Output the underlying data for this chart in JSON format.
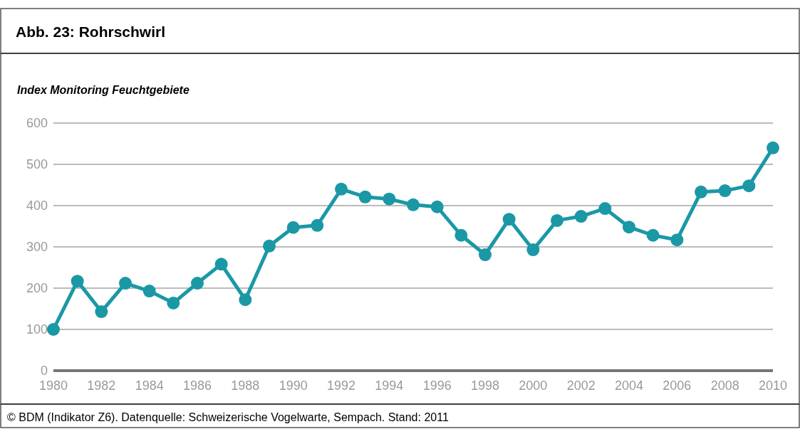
{
  "chart_data": {
    "type": "line",
    "title": "Abb. 23: Rohrschwirl",
    "ylabel": "Index Monitoring Feuchtgebiete",
    "annotations": [
      "©  BDM (Indikator Z6). Datenquelle: Schweizerische Vogelwarte, Sempach. Stand: 2011"
    ],
    "x": [
      1980,
      1981,
      1982,
      1983,
      1984,
      1985,
      1986,
      1987,
      1988,
      1989,
      1990,
      1991,
      1992,
      1993,
      1994,
      1995,
      1996,
      1997,
      1998,
      1999,
      2000,
      2001,
      2002,
      2003,
      2004,
      2005,
      2006,
      2007,
      2008,
      2009,
      2010
    ],
    "series": [
      {
        "color": "#1a98a6",
        "values": [
          100,
          217,
          143,
          212,
          193,
          164,
          212,
          258,
          172,
          302,
          347,
          352,
          440,
          421,
          416,
          402,
          397,
          328,
          281,
          367,
          293,
          364,
          374,
          393,
          348,
          328,
          317,
          433,
          436,
          448,
          540
        ]
      }
    ],
    "xlim": [
      1980,
      2010
    ],
    "xticks": [
      1980,
      1982,
      1984,
      1986,
      1988,
      1990,
      1992,
      1994,
      1996,
      1998,
      2000,
      2002,
      2004,
      2006,
      2008,
      2010
    ],
    "ylim": [
      0,
      600
    ],
    "yticks": [
      0,
      100,
      200,
      300,
      400,
      500,
      600
    ],
    "grid": "y",
    "marker": "circle",
    "line_style": "solid"
  }
}
